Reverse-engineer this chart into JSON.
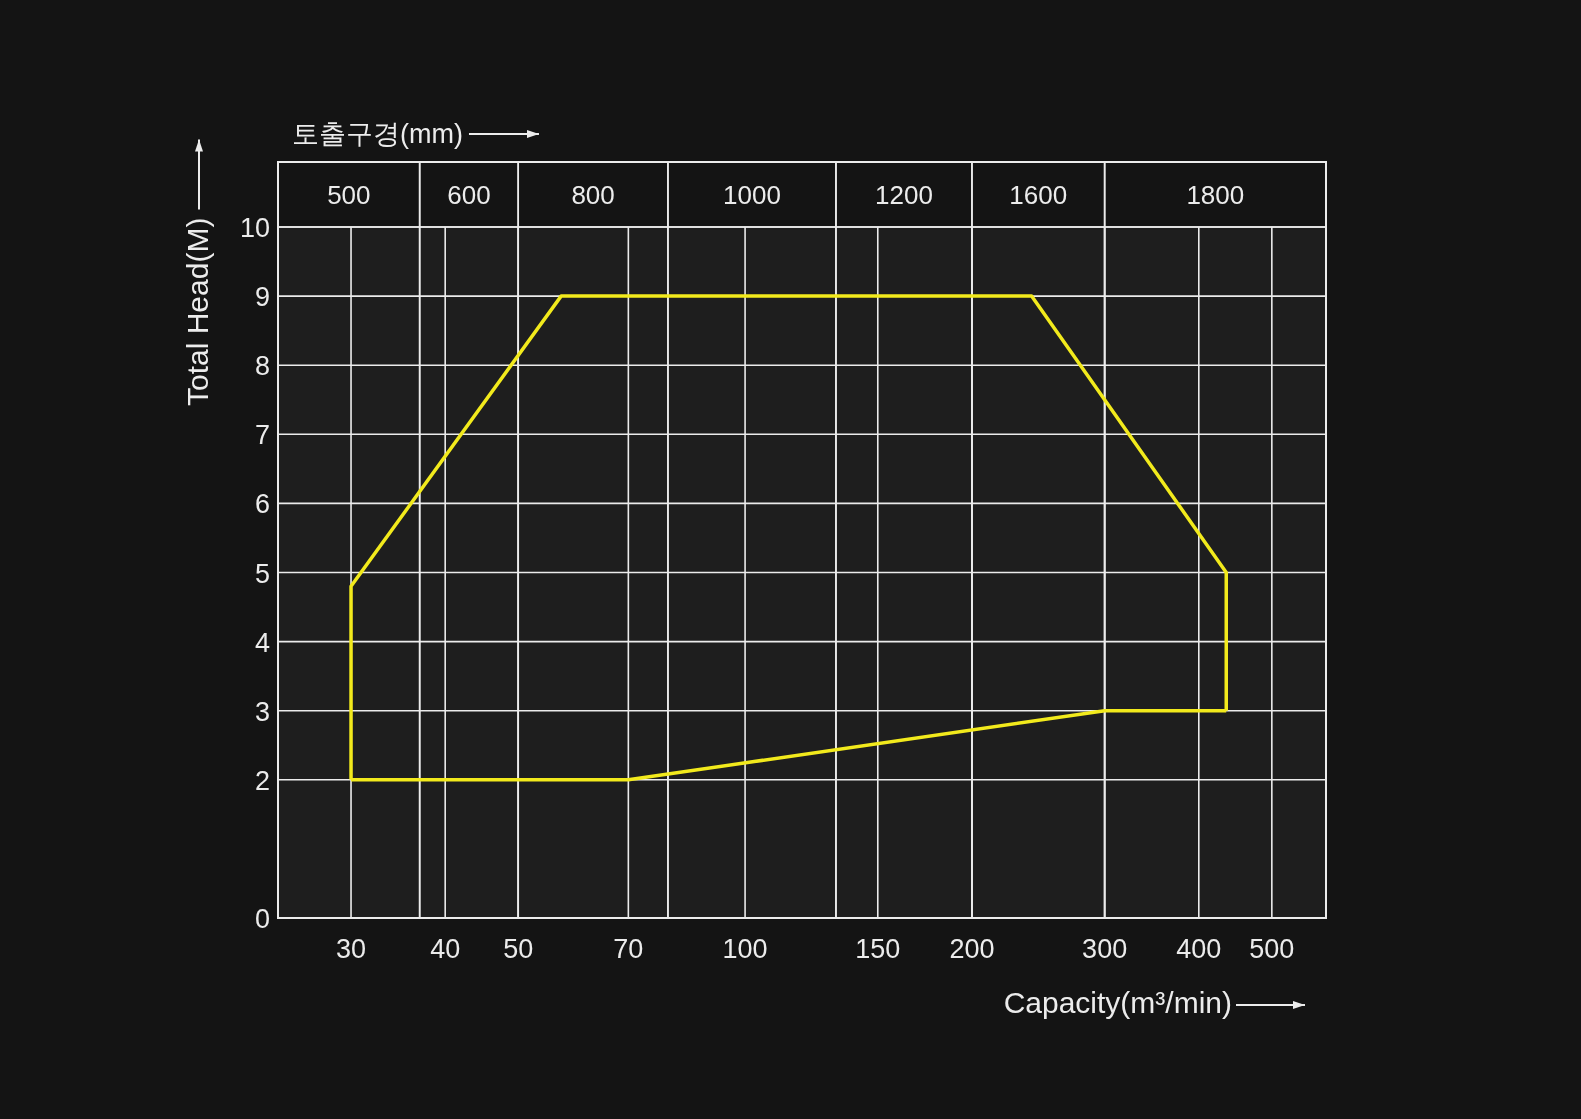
{
  "chart_data": {
    "type": "line",
    "xlabel": "Capacity(m³/min)",
    "ylabel": "Total Head(M)",
    "x2label": "토출구경(mm)",
    "series": [
      {
        "color": "#f2ea1c",
        "x": [
          30,
          30,
          57,
          240,
          435,
          435
        ],
        "values": [
          2,
          4.8,
          9,
          9,
          5,
          3
        ]
      },
      {
        "color": "#f2ea1c",
        "x": [
          30,
          70,
          300,
          435
        ],
        "values": [
          2,
          2,
          3,
          3
        ]
      }
    ],
    "xlim": [
      24,
      590
    ],
    "xticks": [
      30,
      40,
      50,
      70,
      100,
      150,
      200,
      300,
      400,
      500
    ],
    "ylim": [
      0,
      10
    ],
    "yticks": [
      0,
      2,
      3,
      4,
      5,
      6,
      7,
      8,
      9,
      10
    ],
    "log": "x",
    "grid": true,
    "marker": "none",
    "line_style": "solid",
    "bands": [
      {
        "axis": "x",
        "from": 24,
        "to": 37,
        "label": "500",
        "color": "#1e1e1e"
      },
      {
        "axis": "x",
        "from": 37,
        "to": 50,
        "label": "600",
        "color": "#1e1e1e"
      },
      {
        "axis": "x",
        "from": 50,
        "to": 79,
        "label": "800",
        "color": "#1e1e1e"
      },
      {
        "axis": "x",
        "from": 79,
        "to": 132,
        "label": "1000",
        "color": "#1e1e1e"
      },
      {
        "axis": "x",
        "from": 132,
        "to": 200,
        "label": "1200",
        "color": "#1e1e1e"
      },
      {
        "axis": "x",
        "from": 200,
        "to": 300,
        "label": "1600",
        "color": "#1e1e1e"
      },
      {
        "axis": "x",
        "from": 300,
        "to": 590,
        "label": "1800",
        "color": "#1e1e1e"
      }
    ]
  }
}
